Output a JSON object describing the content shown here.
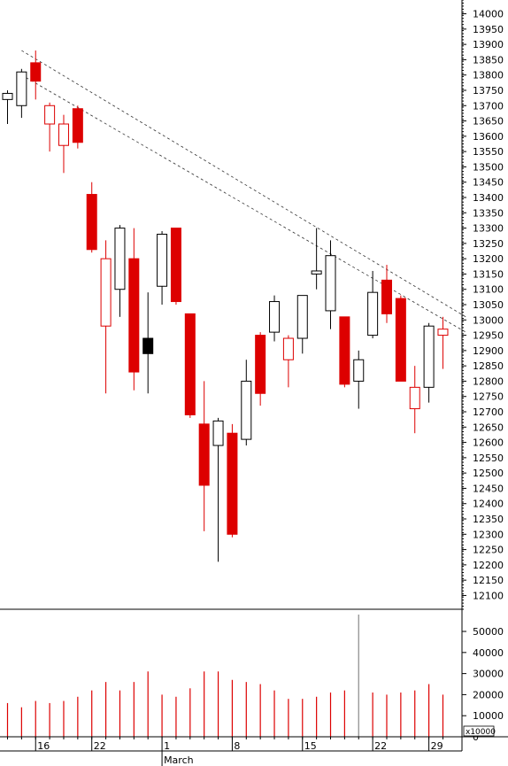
{
  "chart_data": [
    {
      "type": "candlestick",
      "x_ticks": [
        "16",
        "22",
        "1",
        "8",
        "15",
        "22",
        "29"
      ],
      "x_month_label": "March",
      "y_ticks": [
        12100,
        12150,
        12200,
        12250,
        12300,
        12350,
        12400,
        12450,
        12500,
        12550,
        12600,
        12650,
        12700,
        12750,
        12800,
        12850,
        12900,
        12950,
        13000,
        13050,
        13100,
        13150,
        13200,
        13250,
        13300,
        13350,
        13400,
        13450,
        13500,
        13550,
        13600,
        13650,
        13700,
        13750,
        13800,
        13850,
        13900,
        13950,
        14000
      ],
      "ylim": [
        12055,
        14045
      ],
      "up_color": "#000000",
      "down_color": "#dd0000",
      "candles": [
        {
          "o": 13720,
          "h": 13750,
          "l": 13640,
          "c": 13740,
          "color": "black",
          "filled": false
        },
        {
          "o": 13700,
          "h": 13820,
          "l": 13660,
          "c": 13810,
          "color": "black",
          "filled": false
        },
        {
          "o": 13840,
          "h": 13880,
          "l": 13720,
          "c": 13780,
          "color": "red",
          "filled": true
        },
        {
          "o": 13640,
          "h": 13710,
          "l": 13550,
          "c": 13700,
          "color": "red",
          "filled": false
        },
        {
          "o": 13570,
          "h": 13670,
          "l": 13480,
          "c": 13640,
          "color": "red",
          "filled": false
        },
        {
          "o": 13690,
          "h": 13700,
          "l": 13560,
          "c": 13580,
          "color": "red",
          "filled": true
        },
        {
          "o": 13410,
          "h": 13450,
          "l": 13220,
          "c": 13230,
          "color": "red",
          "filled": true
        },
        {
          "o": 12980,
          "h": 13260,
          "l": 12760,
          "c": 13200,
          "color": "red",
          "filled": false
        },
        {
          "o": 13100,
          "h": 13310,
          "l": 13010,
          "c": 13300,
          "color": "black",
          "filled": false
        },
        {
          "o": 13200,
          "h": 13300,
          "l": 12770,
          "c": 12830,
          "color": "red",
          "filled": true
        },
        {
          "o": 12940,
          "h": 13090,
          "l": 12760,
          "c": 12890,
          "color": "black",
          "filled": true
        },
        {
          "o": 13110,
          "h": 13290,
          "l": 13050,
          "c": 13280,
          "color": "black",
          "filled": false
        },
        {
          "o": 13300,
          "h": 13300,
          "l": 13050,
          "c": 13060,
          "color": "red",
          "filled": true
        },
        {
          "o": 13020,
          "h": 13020,
          "l": 12680,
          "c": 12690,
          "color": "red",
          "filled": true
        },
        {
          "o": 12660,
          "h": 12800,
          "l": 12310,
          "c": 12460,
          "color": "red",
          "filled": true
        },
        {
          "o": 12590,
          "h": 12680,
          "l": 12210,
          "c": 12670,
          "color": "black",
          "filled": false
        },
        {
          "o": 12630,
          "h": 12660,
          "l": 12290,
          "c": 12300,
          "color": "red",
          "filled": true
        },
        {
          "o": 12610,
          "h": 12870,
          "l": 12590,
          "c": 12800,
          "color": "black",
          "filled": false
        },
        {
          "o": 12950,
          "h": 12960,
          "l": 12720,
          "c": 12760,
          "color": "red",
          "filled": true
        },
        {
          "o": 12960,
          "h": 13080,
          "l": 12930,
          "c": 13060,
          "color": "black",
          "filled": false
        },
        {
          "o": 12870,
          "h": 12950,
          "l": 12780,
          "c": 12940,
          "color": "red",
          "filled": false
        },
        {
          "o": 12940,
          "h": 13080,
          "l": 12890,
          "c": 13080,
          "color": "black",
          "filled": false
        },
        {
          "o": 13150,
          "h": 13300,
          "l": 13100,
          "c": 13160,
          "color": "black",
          "filled": false
        },
        {
          "o": 13030,
          "h": 13260,
          "l": 12970,
          "c": 13210,
          "color": "black",
          "filled": false
        },
        {
          "o": 13010,
          "h": 13010,
          "l": 12780,
          "c": 12790,
          "color": "red",
          "filled": true
        },
        {
          "o": 12800,
          "h": 12900,
          "l": 12710,
          "c": 12870,
          "color": "black",
          "filled": false
        },
        {
          "o": 12950,
          "h": 13160,
          "l": 12940,
          "c": 13090,
          "color": "black",
          "filled": false
        },
        {
          "o": 13130,
          "h": 13180,
          "l": 12990,
          "c": 13020,
          "color": "red",
          "filled": true
        },
        {
          "o": 13070,
          "h": 13080,
          "l": 12800,
          "c": 12800,
          "color": "red",
          "filled": true
        },
        {
          "o": 12710,
          "h": 12850,
          "l": 12630,
          "c": 12780,
          "color": "red",
          "filled": false
        },
        {
          "o": 12780,
          "h": 12990,
          "l": 12730,
          "c": 12980,
          "color": "black",
          "filled": false
        },
        {
          "o": 12950,
          "h": 13010,
          "l": 12840,
          "c": 12970,
          "color": "red",
          "filled": false
        }
      ],
      "trendlines": [
        {
          "x0": 1.0,
          "y0": 13880,
          "x1": 32.0,
          "y1": 13010
        },
        {
          "x0": 1.0,
          "y0": 13800,
          "x1": 32.0,
          "y1": 12960
        }
      ]
    },
    {
      "type": "bar",
      "unit_label": "x10000",
      "y_ticks": [
        0,
        10000,
        20000,
        30000,
        40000,
        50000
      ],
      "ylim": [
        0,
        58000
      ],
      "values": [
        16000,
        14000,
        17000,
        16000,
        17000,
        19000,
        22000,
        26000,
        22000,
        26000,
        31000,
        20000,
        19000,
        23000,
        31000,
        31000,
        27000,
        26000,
        25000,
        22000,
        18000,
        18000,
        19000,
        21000,
        22000,
        58000,
        21000,
        20000,
        21000,
        22000,
        25000,
        20000
      ],
      "colors": [
        "red",
        "red",
        "red",
        "red",
        "red",
        "red",
        "red",
        "red",
        "red",
        "red",
        "red",
        "red",
        "red",
        "red",
        "red",
        "red",
        "red",
        "red",
        "red",
        "red",
        "red",
        "red",
        "red",
        "red",
        "red",
        "grey",
        "red",
        "red",
        "red",
        "red",
        "red",
        "red"
      ]
    }
  ]
}
